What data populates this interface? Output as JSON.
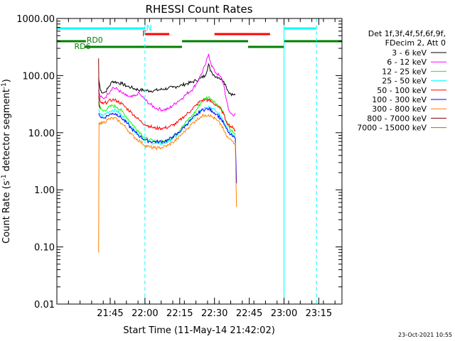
{
  "chart_data": {
    "type": "line",
    "title": "RHESSI Count Rates",
    "xlabel": "Start Time (11-May-14 21:42:02)",
    "ylabel_prefix": "Count Rate (s",
    "ylabel_sup": "-1",
    "ylabel_suffix": " detector segment",
    "ylabel_sup2": "-1",
    "ylabel_close": ")",
    "y_scale": "log",
    "xlim_min": [
      -20,
      103
    ],
    "ylim": [
      0.01,
      1000
    ],
    "x_ticks": [
      {
        "min": 3,
        "label": "21:45"
      },
      {
        "min": 18,
        "label": "22:00"
      },
      {
        "min": 33,
        "label": "22:15"
      },
      {
        "min": 48,
        "label": "22:30"
      },
      {
        "min": 63,
        "label": "22:45"
      },
      {
        "min": 78,
        "label": "23:00"
      },
      {
        "min": 93,
        "label": "23:15"
      }
    ],
    "y_ticks": [
      {
        "value": 1000,
        "label": "1000.00"
      },
      {
        "value": 100,
        "label": "100.00"
      },
      {
        "value": 10,
        "label": "10.00"
      },
      {
        "value": 1,
        "label": "1.00"
      },
      {
        "value": 0.1,
        "label": "0.10"
      },
      {
        "value": 0.01,
        "label": "0.01"
      }
    ],
    "legend": {
      "placement": "right",
      "header": [
        "Det 1f,3f,4f,5f,6f,9f,",
        "FDecim 2, Att 0"
      ]
    },
    "series": [
      {
        "name": "3 - 6 keV",
        "color": "#000000",
        "points": [
          [
            -2,
            90
          ],
          [
            -1.2,
            55
          ],
          [
            0,
            50
          ],
          [
            1,
            52
          ],
          [
            2,
            60
          ],
          [
            4,
            80
          ],
          [
            6,
            76
          ],
          [
            8,
            72
          ],
          [
            10,
            66
          ],
          [
            12,
            62
          ],
          [
            14,
            58
          ],
          [
            16,
            56
          ],
          [
            18,
            55
          ],
          [
            20,
            54
          ],
          [
            22,
            55
          ],
          [
            24,
            56
          ],
          [
            26,
            58
          ],
          [
            28,
            60
          ],
          [
            30,
            62
          ],
          [
            32,
            65
          ],
          [
            34,
            68
          ],
          [
            36,
            72
          ],
          [
            38,
            76
          ],
          [
            40,
            82
          ],
          [
            42,
            90
          ],
          [
            44,
            100
          ],
          [
            45.5,
            160
          ],
          [
            46.2,
            120
          ],
          [
            47,
            110
          ],
          [
            48,
            100
          ],
          [
            50,
            92
          ],
          [
            52,
            80
          ],
          [
            53,
            65
          ],
          [
            54,
            52
          ],
          [
            56,
            46
          ],
          [
            57,
            46
          ]
        ]
      },
      {
        "name": "6 - 12 keV",
        "color": "#ff00ff",
        "points": [
          [
            -2,
            55
          ],
          [
            -1.2,
            42
          ],
          [
            0,
            40
          ],
          [
            1,
            42
          ],
          [
            2,
            48
          ],
          [
            4,
            62
          ],
          [
            6,
            58
          ],
          [
            8,
            50
          ],
          [
            10,
            44
          ],
          [
            12,
            42
          ],
          [
            14,
            44
          ],
          [
            15,
            50
          ],
          [
            16,
            46
          ],
          [
            18,
            38
          ],
          [
            20,
            32
          ],
          [
            22,
            28
          ],
          [
            24,
            26
          ],
          [
            26,
            25
          ],
          [
            28,
            26
          ],
          [
            30,
            30
          ],
          [
            32,
            35
          ],
          [
            34,
            40
          ],
          [
            36,
            48
          ],
          [
            38,
            55
          ],
          [
            40,
            70
          ],
          [
            42,
            100
          ],
          [
            44,
            150
          ],
          [
            45.5,
            240
          ],
          [
            46.5,
            160
          ],
          [
            48,
            120
          ],
          [
            50,
            100
          ],
          [
            51,
            90
          ],
          [
            52,
            70
          ],
          [
            53,
            40
          ],
          [
            54,
            25
          ],
          [
            56,
            20
          ],
          [
            57,
            22
          ]
        ]
      },
      {
        "name": "12 - 25 keV",
        "color": "#00ff00",
        "points": [
          [
            -2,
            34
          ],
          [
            -1.2,
            26
          ],
          [
            0,
            24
          ],
          [
            2,
            27
          ],
          [
            4,
            30
          ],
          [
            6,
            28
          ],
          [
            8,
            24
          ],
          [
            10,
            19
          ],
          [
            12,
            15
          ],
          [
            14,
            12
          ],
          [
            16,
            10
          ],
          [
            18,
            8
          ],
          [
            20,
            7.5
          ],
          [
            22,
            7
          ],
          [
            24,
            7
          ],
          [
            26,
            7
          ],
          [
            28,
            7.5
          ],
          [
            30,
            8.5
          ],
          [
            32,
            10
          ],
          [
            34,
            13
          ],
          [
            36,
            16
          ],
          [
            38,
            19
          ],
          [
            40,
            24
          ],
          [
            42,
            33
          ],
          [
            44,
            40
          ],
          [
            45.5,
            42
          ],
          [
            47,
            38
          ],
          [
            49,
            32
          ],
          [
            51,
            26
          ],
          [
            52,
            22
          ],
          [
            53,
            16
          ],
          [
            54,
            13
          ],
          [
            56,
            10
          ],
          [
            57,
            9
          ]
        ]
      },
      {
        "name": "25 - 50 keV",
        "color": "#00ffff",
        "points": [
          [
            -2,
            26
          ],
          [
            -1.2,
            21
          ],
          [
            0,
            20
          ],
          [
            2,
            23
          ],
          [
            4,
            25
          ],
          [
            6,
            24
          ],
          [
            8,
            20
          ],
          [
            10,
            16
          ],
          [
            12,
            13
          ],
          [
            14,
            10.5
          ],
          [
            16,
            9
          ],
          [
            18,
            7.5
          ],
          [
            20,
            7
          ],
          [
            22,
            6.5
          ],
          [
            24,
            6.5
          ],
          [
            26,
            6.5
          ],
          [
            28,
            7
          ],
          [
            30,
            8
          ],
          [
            32,
            9
          ],
          [
            34,
            11.5
          ],
          [
            36,
            14
          ],
          [
            38,
            17
          ],
          [
            40,
            20
          ],
          [
            42,
            25
          ],
          [
            44,
            28
          ],
          [
            45.5,
            29
          ],
          [
            47,
            27
          ],
          [
            49,
            23
          ],
          [
            51,
            19
          ],
          [
            52,
            16
          ],
          [
            53,
            13
          ],
          [
            54,
            11
          ],
          [
            56,
            9
          ],
          [
            57,
            8
          ]
        ]
      },
      {
        "name": "50 - 100 keV",
        "color": "#ff0000",
        "points": [
          [
            -2,
            44
          ],
          [
            -1.2,
            34
          ],
          [
            0,
            32
          ],
          [
            2,
            35
          ],
          [
            4,
            38
          ],
          [
            6,
            36
          ],
          [
            8,
            32
          ],
          [
            10,
            27
          ],
          [
            12,
            23
          ],
          [
            14,
            19
          ],
          [
            16,
            16
          ],
          [
            18,
            14
          ],
          [
            20,
            13
          ],
          [
            22,
            12
          ],
          [
            24,
            12
          ],
          [
            26,
            12
          ],
          [
            28,
            12.5
          ],
          [
            30,
            13.5
          ],
          [
            32,
            15
          ],
          [
            34,
            18
          ],
          [
            36,
            21
          ],
          [
            38,
            25
          ],
          [
            40,
            30
          ],
          [
            42,
            36
          ],
          [
            44,
            38
          ],
          [
            45.5,
            37
          ],
          [
            47,
            34
          ],
          [
            49,
            30
          ],
          [
            51,
            25
          ],
          [
            52,
            21
          ],
          [
            53,
            16
          ],
          [
            54,
            14
          ],
          [
            56,
            12
          ],
          [
            57,
            11
          ]
        ]
      },
      {
        "name": "100 - 300 keV",
        "color": "#0000ff",
        "points": [
          [
            -2,
            22
          ],
          [
            -1.2,
            19
          ],
          [
            0,
            18
          ],
          [
            2,
            20
          ],
          [
            4,
            22
          ],
          [
            6,
            21
          ],
          [
            8,
            18
          ],
          [
            10,
            15
          ],
          [
            12,
            12
          ],
          [
            14,
            10
          ],
          [
            16,
            8.5
          ],
          [
            18,
            7.5
          ],
          [
            20,
            7
          ],
          [
            22,
            7
          ],
          [
            24,
            7
          ],
          [
            26,
            7
          ],
          [
            28,
            7.5
          ],
          [
            30,
            8.5
          ],
          [
            32,
            9.5
          ],
          [
            34,
            11.5
          ],
          [
            36,
            14
          ],
          [
            38,
            17
          ],
          [
            40,
            20
          ],
          [
            42,
            24
          ],
          [
            44,
            26
          ],
          [
            45.5,
            26
          ],
          [
            47,
            24
          ],
          [
            49,
            21
          ],
          [
            51,
            17
          ],
          [
            52,
            14.5
          ],
          [
            53,
            12
          ],
          [
            54,
            10
          ],
          [
            56,
            8.5
          ],
          [
            57,
            8
          ],
          [
            57.5,
            1.3
          ]
        ]
      },
      {
        "name": "300 - 800 keV",
        "color": "#ff8000",
        "points": [
          [
            -2,
            0.08
          ],
          [
            -1.8,
            15
          ],
          [
            -1.2,
            15
          ],
          [
            0,
            15
          ],
          [
            2,
            17
          ],
          [
            4,
            18
          ],
          [
            6,
            17
          ],
          [
            8,
            14.5
          ],
          [
            10,
            12
          ],
          [
            12,
            9.5
          ],
          [
            14,
            8
          ],
          [
            16,
            7
          ],
          [
            18,
            6
          ],
          [
            20,
            5.6
          ],
          [
            22,
            5.4
          ],
          [
            24,
            5.4
          ],
          [
            26,
            5.6
          ],
          [
            28,
            6
          ],
          [
            30,
            6.8
          ],
          [
            32,
            7.8
          ],
          [
            34,
            9.5
          ],
          [
            36,
            11.5
          ],
          [
            38,
            14
          ],
          [
            40,
            16.5
          ],
          [
            42,
            19
          ],
          [
            44,
            20.5
          ],
          [
            45.5,
            20.5
          ],
          [
            47,
            19
          ],
          [
            49,
            16.5
          ],
          [
            51,
            13.5
          ],
          [
            52,
            11
          ],
          [
            53,
            9
          ],
          [
            54,
            8
          ],
          [
            56,
            7
          ],
          [
            57,
            6.5
          ],
          [
            57.5,
            0.5
          ]
        ]
      },
      {
        "name": "800 - 7000 keV",
        "color": "#800000",
        "points": [
          [
            -2,
            200
          ],
          [
            -1.8,
            30
          ],
          [
            -1.2,
            28
          ]
        ]
      },
      {
        "name": "7000 - 15000 keV",
        "color": "#808000",
        "points": []
      }
    ],
    "band_F": {
      "label": "F",
      "color": "#ff0000",
      "segments": [
        [
          18,
          28.5
        ],
        [
          48,
          72
        ]
      ]
    },
    "band_N": {
      "label": "N",
      "color": "#00ffff",
      "segments": [
        [
          -20,
          18
        ],
        [
          78,
          92
        ]
      ]
    },
    "band_RD0": {
      "label": "RD0",
      "color": "#008000",
      "segments": [
        [
          -20,
          -7.5
        ],
        [
          34,
          62.5
        ],
        [
          78,
          103
        ]
      ]
    },
    "band_RD6": {
      "label": "RD6",
      "color": "#008000",
      "segments": [
        [
          -8,
          34
        ],
        [
          62.5,
          78
        ]
      ]
    },
    "vlines": [
      {
        "min": -20,
        "color": "#00ffff",
        "dash": false
      },
      {
        "min": 18,
        "color": "#00ffff",
        "dash": true
      },
      {
        "min": 78,
        "color": "#00ffff",
        "dash": false
      },
      {
        "min": 92,
        "color": "#00ffff",
        "dash": true
      }
    ],
    "stamp": "23-Oct-2021 10:55"
  }
}
